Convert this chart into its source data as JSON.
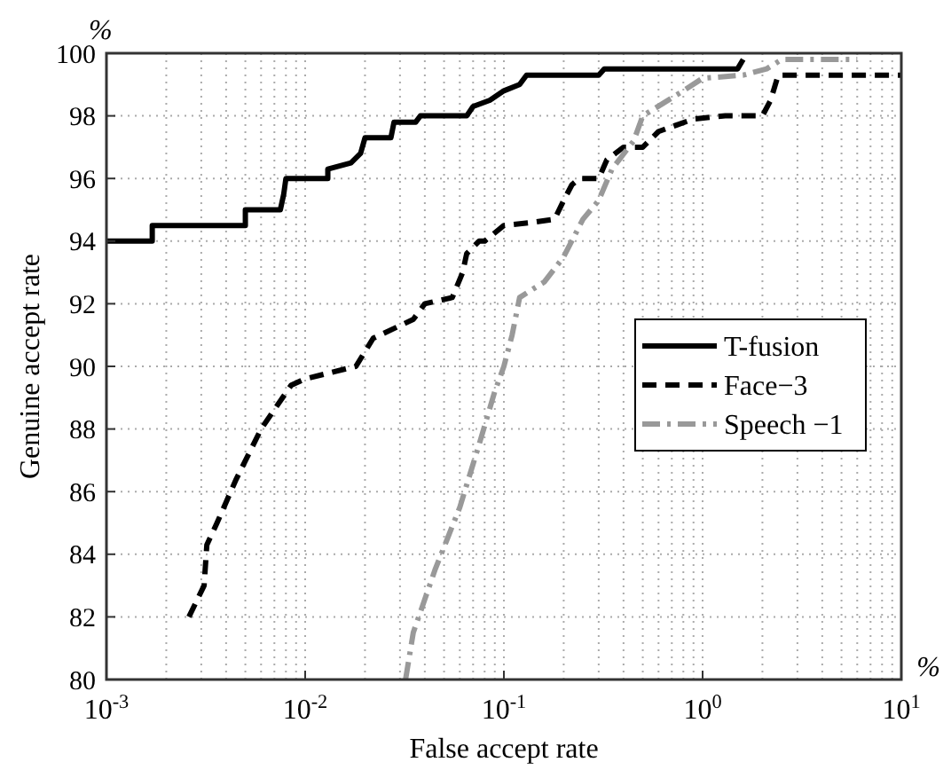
{
  "chart_data": {
    "type": "line",
    "xlabel": "False accept rate",
    "ylabel": "Genuine accept rate",
    "log": "x",
    "grid": true,
    "legend": "right",
    "xlim": [
      0.001,
      10
    ],
    "ylim": [
      80,
      100
    ],
    "xticks": [
      {
        "value": 0.001,
        "label": "10$^{-3}$"
      },
      {
        "value": 0.01,
        "label": "10$^{-2}$"
      },
      {
        "value": 0.1,
        "label": "10$^{-1}$"
      },
      {
        "value": 1,
        "label": "10$^{0}$"
      },
      {
        "value": 10,
        "label": "10$^{1}$"
      }
    ],
    "yticks": [
      80,
      82,
      84,
      86,
      88,
      90,
      92,
      94,
      96,
      98,
      100
    ],
    "annotations": [
      "%",
      "%"
    ],
    "series": [
      {
        "name": "T-fusion",
        "color": "#000000",
        "line_style": "solid",
        "x": [
          0.001,
          0.0017,
          0.0017,
          0.005,
          0.005,
          0.0075,
          0.0078,
          0.008,
          0.013,
          0.013,
          0.017,
          0.019,
          0.02,
          0.027,
          0.028,
          0.036,
          0.038,
          0.065,
          0.07,
          0.085,
          0.1,
          0.12,
          0.13,
          0.3,
          0.32,
          1.5,
          1.6
        ],
        "values": [
          94,
          94,
          94.5,
          94.5,
          95,
          95,
          95.5,
          96,
          96,
          96.3,
          96.5,
          96.8,
          97.3,
          97.3,
          97.8,
          97.8,
          98,
          98,
          98.3,
          98.5,
          98.8,
          99,
          99.3,
          99.3,
          99.5,
          99.5,
          99.8
        ]
      },
      {
        "name": "Face−3",
        "color": "#000000",
        "line_style": "dashed",
        "x": [
          0.0026,
          0.0031,
          0.0032,
          0.0036,
          0.0045,
          0.006,
          0.0085,
          0.01,
          0.018,
          0.022,
          0.035,
          0.04,
          0.055,
          0.062,
          0.065,
          0.075,
          0.08,
          0.1,
          0.14,
          0.18,
          0.2,
          0.22,
          0.24,
          0.3,
          0.33,
          0.4,
          0.5,
          0.6,
          0.9,
          1.3,
          2,
          2.2,
          2.4,
          10
        ],
        "values": [
          82,
          83,
          84.3,
          85,
          86.4,
          88,
          89.4,
          89.6,
          90,
          90.9,
          91.5,
          92,
          92.2,
          93,
          93.6,
          94,
          94,
          94.5,
          94.6,
          94.7,
          95.3,
          95.8,
          96,
          96,
          96.6,
          97,
          97,
          97.5,
          97.9,
          98,
          98,
          98.5,
          99.3,
          99.3
        ]
      },
      {
        "name": "Speech −1",
        "color": "#999999",
        "line_style": "dashdot",
        "x": [
          0.032,
          0.035,
          0.045,
          0.06,
          0.075,
          0.09,
          0.1,
          0.11,
          0.12,
          0.16,
          0.2,
          0.25,
          0.3,
          0.35,
          0.45,
          0.5,
          0.8,
          1,
          1.6,
          2.1,
          2.5,
          3,
          6
        ],
        "values": [
          80,
          81.5,
          83.5,
          85.5,
          87.5,
          89.2,
          90,
          91,
          92.2,
          92.7,
          93.5,
          94.7,
          95.3,
          96.3,
          97.2,
          98,
          98.8,
          99.2,
          99.3,
          99.5,
          99.8,
          99.8,
          99.8
        ]
      }
    ]
  }
}
